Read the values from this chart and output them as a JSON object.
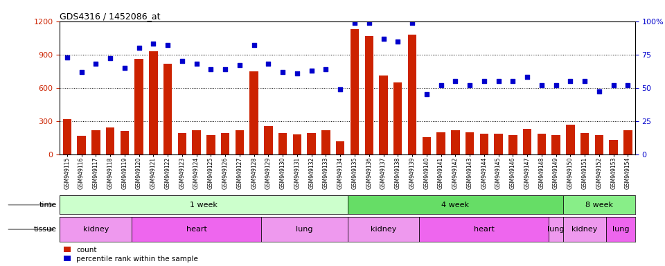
{
  "title": "GDS4316 / 1452086_at",
  "samples": [
    "GSM949115",
    "GSM949116",
    "GSM949117",
    "GSM949118",
    "GSM949119",
    "GSM949120",
    "GSM949121",
    "GSM949122",
    "GSM949123",
    "GSM949124",
    "GSM949125",
    "GSM949126",
    "GSM949127",
    "GSM949128",
    "GSM949129",
    "GSM949130",
    "GSM949131",
    "GSM949132",
    "GSM949133",
    "GSM949134",
    "GSM949135",
    "GSM949136",
    "GSM949137",
    "GSM949138",
    "GSM949139",
    "GSM949140",
    "GSM949141",
    "GSM949142",
    "GSM949143",
    "GSM949144",
    "GSM949145",
    "GSM949146",
    "GSM949147",
    "GSM949148",
    "GSM949149",
    "GSM949150",
    "GSM949151",
    "GSM949152",
    "GSM949153",
    "GSM949154"
  ],
  "counts": [
    320,
    170,
    220,
    240,
    210,
    860,
    930,
    820,
    190,
    220,
    175,
    190,
    215,
    750,
    255,
    195,
    180,
    190,
    220,
    120,
    1130,
    1070,
    710,
    650,
    1080,
    155,
    200,
    220,
    200,
    185,
    185,
    175,
    230,
    185,
    175,
    270,
    195,
    175,
    130,
    215
  ],
  "percentiles": [
    73,
    62,
    68,
    72,
    65,
    80,
    83,
    82,
    70,
    68,
    64,
    64,
    67,
    82,
    68,
    62,
    61,
    63,
    64,
    49,
    99,
    99,
    87,
    85,
    99,
    45,
    52,
    55,
    52,
    55,
    55,
    55,
    58,
    52,
    52,
    55,
    55,
    47,
    52,
    52
  ],
  "ylim_left": [
    0,
    1200
  ],
  "ylim_right": [
    0,
    100
  ],
  "yticks_left": [
    0,
    300,
    600,
    900,
    1200
  ],
  "yticks_right": [
    0,
    25,
    50,
    75,
    100
  ],
  "bar_color": "#cc2200",
  "dot_color": "#0000cc",
  "time_groups": [
    {
      "label": "1 week",
      "start": 0,
      "end": 19,
      "color": "#ccffcc"
    },
    {
      "label": "4 week",
      "start": 20,
      "end": 34,
      "color": "#66dd66"
    },
    {
      "label": "8 week",
      "start": 35,
      "end": 39,
      "color": "#88ee88"
    }
  ],
  "tissue_groups": [
    {
      "label": "kidney",
      "start": 0,
      "end": 4,
      "color": "#ee99ee"
    },
    {
      "label": "heart",
      "start": 5,
      "end": 13,
      "color": "#ee66ee"
    },
    {
      "label": "lung",
      "start": 14,
      "end": 19,
      "color": "#ee99ee"
    },
    {
      "label": "kidney",
      "start": 20,
      "end": 24,
      "color": "#ee99ee"
    },
    {
      "label": "heart",
      "start": 25,
      "end": 33,
      "color": "#ee66ee"
    },
    {
      "label": "lung",
      "start": 34,
      "end": 34,
      "color": "#ee99ee"
    },
    {
      "label": "kidney",
      "start": 35,
      "end": 37,
      "color": "#ee99ee"
    },
    {
      "label": "lung",
      "start": 38,
      "end": 39,
      "color": "#ee66ee"
    }
  ],
  "legend_count_label": "count",
  "legend_pct_label": "percentile rank within the sample"
}
